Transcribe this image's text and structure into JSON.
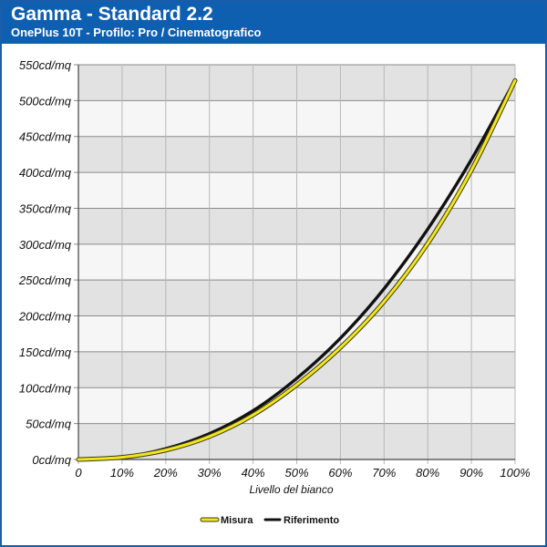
{
  "header": {
    "title": "Gamma - Standard 2.2",
    "subtitle": "OnePlus 10T - Profilo: Pro / Cinematografico"
  },
  "colors": {
    "header_bg": "#0f5fb1",
    "band_dark": "#e2e2e2",
    "band_light": "#f6f6f6",
    "measured": "#f2e51e",
    "reference": "#111111"
  },
  "chart_data": {
    "type": "line",
    "xlabel": "Livello del bianco",
    "ylabel": "",
    "xlim": [
      0,
      100
    ],
    "ylim": [
      0,
      550
    ],
    "x_ticks": [
      "0",
      "10%",
      "20%",
      "30%",
      "40%",
      "50%",
      "60%",
      "70%",
      "80%",
      "90%",
      "100%"
    ],
    "y_ticks": [
      "0cd/mq",
      "50cd/mq",
      "100cd/mq",
      "150cd/mq",
      "200cd/mq",
      "250cd/mq",
      "300cd/mq",
      "350cd/mq",
      "400cd/mq",
      "450cd/mq",
      "500cd/mq",
      "550cd/mq"
    ],
    "grid": true,
    "legend_position": "bottom-center",
    "x": [
      0,
      10,
      20,
      30,
      40,
      50,
      60,
      70,
      80,
      90,
      100
    ],
    "series": [
      {
        "name": "Misura",
        "color": "#f2e51e",
        "values": [
          0,
          3,
          13,
          32,
          62,
          104,
          156,
          220,
          301,
          403,
          528
        ]
      },
      {
        "name": "Riferimento",
        "color": "#111111",
        "values": [
          0,
          3,
          15,
          36,
          68,
          113,
          169,
          238,
          321,
          418,
          529
        ]
      }
    ]
  }
}
